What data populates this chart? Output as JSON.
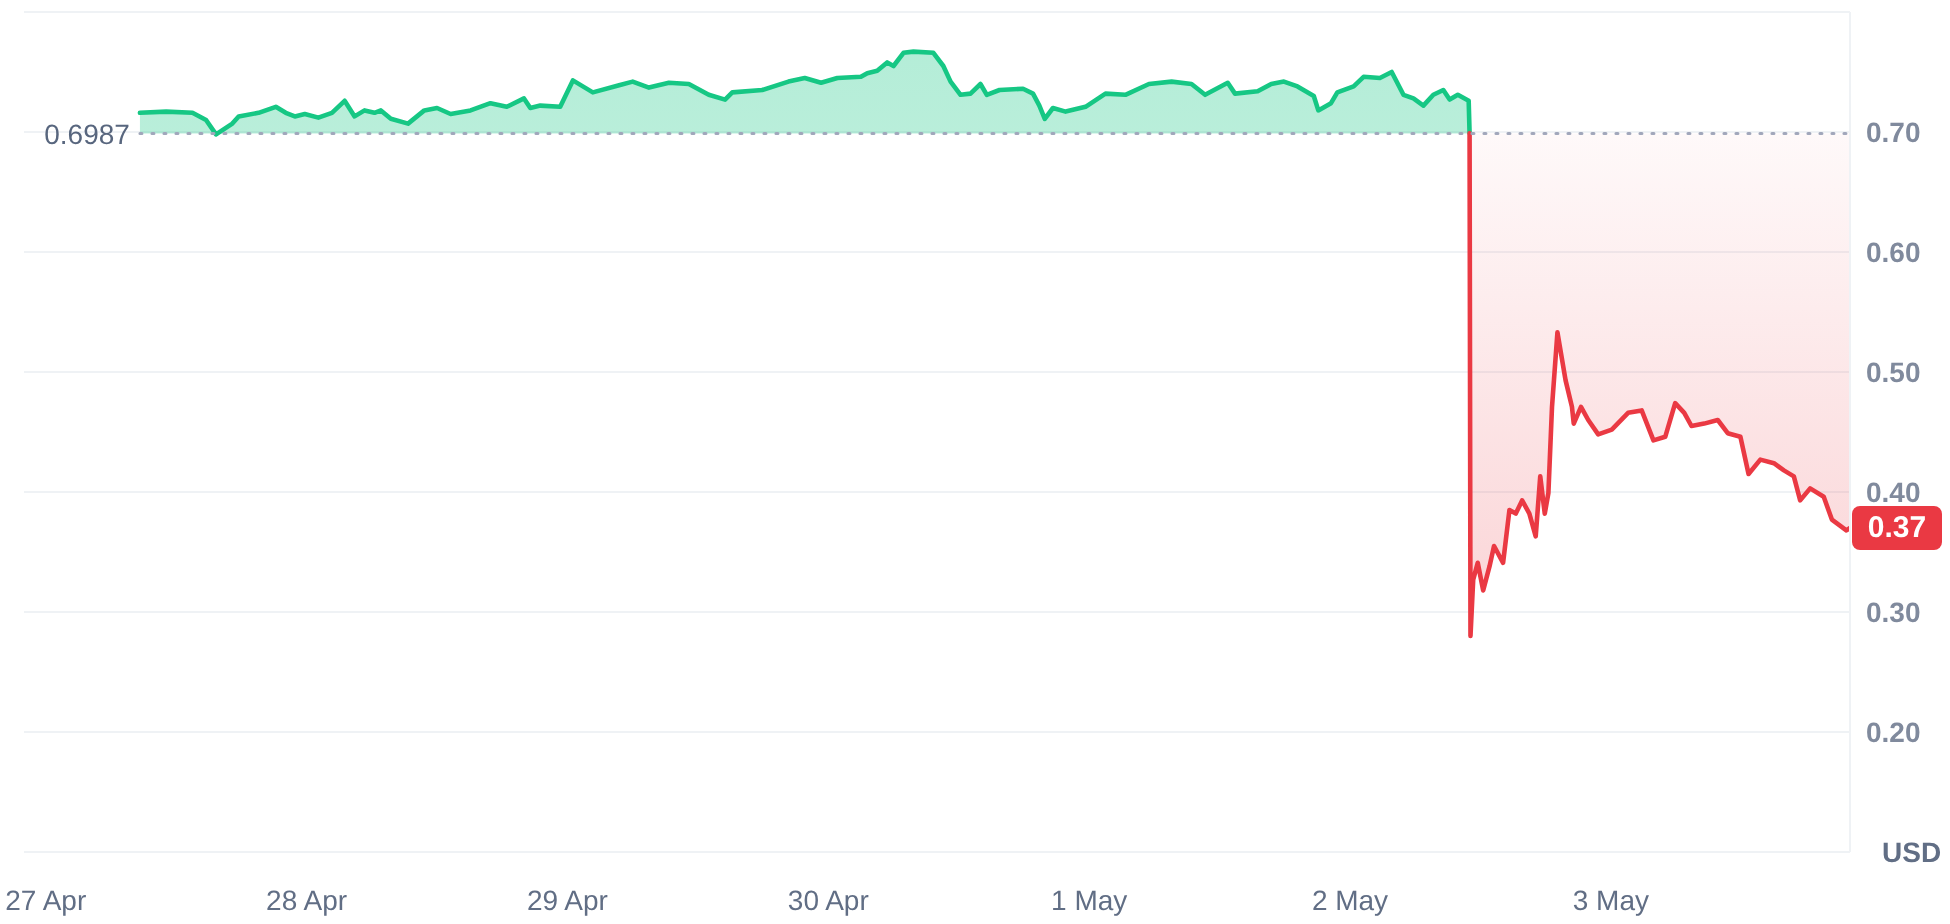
{
  "chart_data": {
    "type": "area",
    "ylabel": "USD",
    "xlim": [
      "--04-26T22:00",
      "--05-03T22:00"
    ],
    "xticks": [
      {
        "value": "--04-27",
        "label": "27 Apr"
      },
      {
        "value": "--04-28",
        "label": "28 Apr"
      },
      {
        "value": "--04-29",
        "label": "29 Apr"
      },
      {
        "value": "--04-30",
        "label": "30 Apr"
      },
      {
        "value": "--05-01",
        "label": "1 May"
      },
      {
        "value": "--05-02",
        "label": "2 May"
      },
      {
        "value": "--05-03",
        "label": "3 May"
      }
    ],
    "ylim": [
      0.1,
      0.8
    ],
    "yticks": [
      {
        "value": 0.2,
        "label": "0.20"
      },
      {
        "value": 0.3,
        "label": "0.30"
      },
      {
        "value": 0.4,
        "label": "0.40"
      },
      {
        "value": 0.5,
        "label": "0.50"
      },
      {
        "value": 0.6,
        "label": "0.60"
      },
      {
        "value": 0.7,
        "label": "0.70"
      }
    ],
    "grid": "y",
    "ref_lines": [
      {
        "axis": "y",
        "value": 0.6987,
        "label": "0.6987",
        "color": "#a1a7bb",
        "line_style": "dotted"
      }
    ],
    "annotations": [
      {
        "text": "0.37",
        "x": "--05-03T22:00",
        "y": 0.37
      }
    ],
    "series": [
      {
        "color": "#16c784",
        "x": [
          "--04-27T08:40",
          "--04-27T11:05",
          "--04-27T13:30",
          "--04-27T14:45",
          "--04-27T15:40",
          "--04-27T17:10",
          "--04-27T17:45",
          "--04-27T19:35",
          "--04-27T21:10",
          "--04-27T22:05",
          "--04-27T22:55",
          "--04-27T23:50",
          "--04-28T01:05",
          "--04-28T02:20",
          "--04-28T03:30",
          "--04-28T04:25",
          "--04-28T05:20",
          "--04-28T06:15",
          "--04-28T06:50",
          "--04-28T07:45",
          "--04-28T09:20",
          "--04-28T10:50",
          "--04-28T12:00",
          "--04-28T13:15",
          "--04-28T15:05",
          "--04-28T16:55",
          "--04-28T18:25",
          "--04-28T20:00",
          "--04-28T20:35",
          "--04-28T21:30",
          "--04-28T23:20",
          "--04-29T00:30",
          "--04-29T02:20",
          "--04-29T04:45",
          "--04-29T06:00",
          "--04-29T07:30",
          "--04-29T09:20",
          "--04-29T11:10",
          "--04-29T13:00",
          "--04-29T14:30",
          "--04-29T15:10",
          "--04-29T17:55",
          "--04-29T20:20",
          "--04-29T21:50",
          "--04-29T23:20",
          "--04-30T00:50",
          "--04-30T03:00",
          "--04-30T03:35",
          "--04-30T04:30",
          "--04-30T05:25",
          "--04-30T06:00",
          "--04-30T06:55",
          "--04-30T07:50",
          "--04-30T09:40",
          "--04-30T10:35",
          "--04-30T11:15",
          "--04-30T12:10",
          "--04-30T13:05",
          "--04-30T14:00",
          "--04-30T14:35",
          "--04-30T15:45",
          "--04-30T17:55",
          "--04-30T18:50",
          "--04-30T19:25",
          "--04-30T19:55",
          "--04-30T20:40",
          "--04-30T21:50",
          "--04-30T23:40",
          "--05-01T01:30",
          "--05-01T03:20",
          "--05-01T05:30",
          "--05-01T07:35",
          "--05-01T09:25",
          "--05-01T10:40",
          "--05-01T12:45",
          "--05-01T13:25",
          "--05-01T15:30",
          "--05-01T16:45",
          "--05-01T17:55",
          "--05-01T19:10",
          "--05-01T20:40",
          "--05-01T21:05",
          "--05-01T22:15",
          "--05-01T22:50",
          "--05-02T00:20",
          "--05-02T01:15",
          "--05-02T02:45",
          "--05-02T03:50",
          "--05-02T04:55",
          "--05-02T05:50",
          "--05-02T06:45",
          "--05-02T07:40",
          "--05-02T08:35",
          "--05-02T09:10",
          "--05-02T09:55",
          "--05-02T10:55",
          "--05-02T11:00"
        ],
        "values": [
          0.716,
          0.717,
          0.716,
          0.71,
          0.698,
          0.707,
          0.713,
          0.716,
          0.721,
          0.716,
          0.713,
          0.715,
          0.712,
          0.716,
          0.726,
          0.713,
          0.718,
          0.716,
          0.718,
          0.711,
          0.707,
          0.718,
          0.72,
          0.715,
          0.718,
          0.724,
          0.721,
          0.728,
          0.72,
          0.722,
          0.721,
          0.743,
          0.733,
          0.739,
          0.742,
          0.737,
          0.741,
          0.74,
          0.731,
          0.727,
          0.733,
          0.735,
          0.742,
          0.745,
          0.741,
          0.745,
          0.746,
          0.749,
          0.751,
          0.758,
          0.755,
          0.766,
          0.767,
          0.766,
          0.755,
          0.742,
          0.731,
          0.732,
          0.74,
          0.731,
          0.735,
          0.736,
          0.732,
          0.722,
          0.711,
          0.72,
          0.717,
          0.721,
          0.732,
          0.731,
          0.74,
          0.742,
          0.74,
          0.731,
          0.741,
          0.732,
          0.734,
          0.74,
          0.742,
          0.738,
          0.73,
          0.718,
          0.724,
          0.733,
          0.738,
          0.746,
          0.745,
          0.75,
          0.731,
          0.728,
          0.722,
          0.731,
          0.735,
          0.727,
          0.731,
          0.726,
          0.699
        ]
      },
      {
        "type": "line",
        "color": "#ea3943",
        "x": [
          "--05-02T11:00",
          "--05-02T11:05",
          "--05-02T11:20",
          "--05-02T11:45",
          "--05-02T12:15",
          "--05-02T12:50",
          "--05-02T13:15",
          "--05-02T14:05",
          "--05-02T14:40",
          "--05-02T15:15",
          "--05-02T15:50",
          "--05-02T16:30",
          "--05-02T17:05",
          "--05-02T17:30",
          "--05-02T17:55",
          "--05-02T18:15",
          "--05-02T18:35",
          "--05-02T19:05",
          "--05-02T19:50",
          "--05-02T20:25",
          "--05-02T20:35",
          "--05-02T21:15",
          "--05-02T21:55",
          "--05-02T22:50",
          "--05-03T00:05",
          "--05-03T01:35",
          "--05-03T02:50",
          "--05-03T03:55",
          "--05-03T05:00",
          "--05-03T05:55",
          "--05-03T06:45",
          "--05-03T07:25",
          "--05-03T08:35",
          "--05-03T09:50",
          "--05-03T10:45",
          "--05-03T11:55",
          "--05-03T12:40",
          "--05-03T13:45",
          "--05-03T15:00",
          "--05-03T15:55",
          "--05-03T16:50",
          "--05-03T17:25",
          "--05-03T18:20",
          "--05-03T19:35",
          "--05-03T20:20",
          "--05-03T21:40",
          "--05-03T22:00"
        ],
        "values": [
          0.699,
          0.28,
          0.327,
          0.341,
          0.318,
          0.338,
          0.355,
          0.341,
          0.385,
          0.382,
          0.393,
          0.382,
          0.363,
          0.413,
          0.382,
          0.399,
          0.471,
          0.533,
          0.493,
          0.471,
          0.457,
          0.471,
          0.46,
          0.448,
          0.452,
          0.466,
          0.468,
          0.443,
          0.446,
          0.474,
          0.466,
          0.455,
          0.457,
          0.46,
          0.449,
          0.446,
          0.415,
          0.427,
          0.424,
          0.418,
          0.413,
          0.393,
          0.403,
          0.396,
          0.377,
          0.368,
          0.37
        ]
      }
    ]
  }
}
